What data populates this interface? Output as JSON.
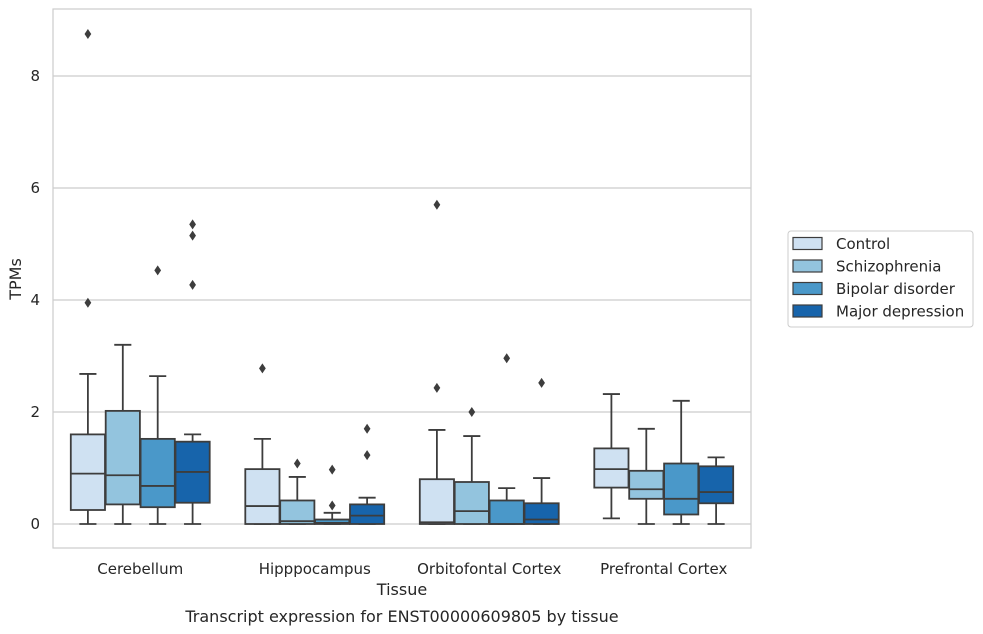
{
  "chart_data": {
    "type": "boxplot",
    "caption": "Transcript expression for ENST00000609805 by tissue",
    "xlabel": "Tissue",
    "ylabel": "TPMs",
    "ylim": [
      -0.42,
      9.2
    ],
    "yticks": [
      0,
      2,
      4,
      6,
      8
    ],
    "grid": "horizontal",
    "legend_position": "right",
    "categories": [
      "Cerebellum",
      "Hipppocampus",
      "Orbitofontal Cortex",
      "Prefrontal Cortex"
    ],
    "series": [
      {
        "name": "Control",
        "color": "#cfe1f2",
        "boxes": [
          {
            "whislo": 0.0,
            "q1": 0.25,
            "med": 0.9,
            "q3": 1.6,
            "whishi": 2.68,
            "fliers": [
              3.95,
              8.75
            ]
          },
          {
            "whislo": 0.0,
            "q1": 0.0,
            "med": 0.32,
            "q3": 0.98,
            "whishi": 1.52,
            "fliers": [
              2.78
            ]
          },
          {
            "whislo": 0.0,
            "q1": 0.0,
            "med": 0.03,
            "q3": 0.8,
            "whishi": 1.68,
            "fliers": [
              2.43,
              5.7
            ]
          },
          {
            "whislo": 0.1,
            "q1": 0.65,
            "med": 0.98,
            "q3": 1.35,
            "whishi": 2.32,
            "fliers": []
          }
        ]
      },
      {
        "name": "Schizophrenia",
        "color": "#93c4de",
        "boxes": [
          {
            "whislo": 0.0,
            "q1": 0.35,
            "med": 0.87,
            "q3": 2.02,
            "whishi": 3.2,
            "fliers": []
          },
          {
            "whislo": 0.0,
            "q1": 0.0,
            "med": 0.05,
            "q3": 0.42,
            "whishi": 0.84,
            "fliers": [
              1.08
            ]
          },
          {
            "whislo": 0.0,
            "q1": 0.0,
            "med": 0.23,
            "q3": 0.75,
            "whishi": 1.57,
            "fliers": [
              2.0
            ]
          },
          {
            "whislo": 0.0,
            "q1": 0.45,
            "med": 0.62,
            "q3": 0.95,
            "whishi": 1.7,
            "fliers": []
          }
        ]
      },
      {
        "name": "Bipolar disorder",
        "color": "#4a98c9",
        "boxes": [
          {
            "whislo": 0.0,
            "q1": 0.3,
            "med": 0.68,
            "q3": 1.52,
            "whishi": 2.64,
            "fliers": [
              4.53
            ]
          },
          {
            "whislo": 0.0,
            "q1": 0.0,
            "med": 0.02,
            "q3": 0.08,
            "whishi": 0.2,
            "fliers": [
              0.33,
              0.97
            ]
          },
          {
            "whislo": 0.0,
            "q1": 0.0,
            "med": 0.0,
            "q3": 0.42,
            "whishi": 0.64,
            "fliers": [
              2.96
            ]
          },
          {
            "whislo": 0.0,
            "q1": 0.17,
            "med": 0.45,
            "q3": 1.08,
            "whishi": 2.2,
            "fliers": []
          }
        ]
      },
      {
        "name": "Major depression",
        "color": "#1764ab",
        "boxes": [
          {
            "whislo": 0.0,
            "q1": 0.38,
            "med": 0.93,
            "q3": 1.47,
            "whishi": 1.6,
            "fliers": [
              4.27,
              5.15,
              5.35
            ]
          },
          {
            "whislo": 0.0,
            "q1": 0.0,
            "med": 0.15,
            "q3": 0.35,
            "whishi": 0.47,
            "fliers": [
              1.23,
              1.7
            ]
          },
          {
            "whislo": 0.0,
            "q1": 0.0,
            "med": 0.08,
            "q3": 0.37,
            "whishi": 0.82,
            "fliers": [
              2.52
            ]
          },
          {
            "whislo": 0.0,
            "q1": 0.37,
            "med": 0.57,
            "q3": 1.03,
            "whishi": 1.19,
            "fliers": []
          }
        ]
      }
    ]
  }
}
